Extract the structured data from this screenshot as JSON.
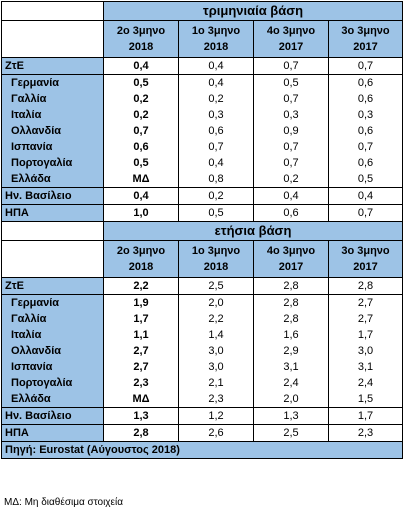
{
  "sections": [
    {
      "title": "τριμηνιαία βάση",
      "headers": [
        {
          "line1": "2ο 3μηνο",
          "line2": "2018"
        },
        {
          "line1": "1ο 3μηνο",
          "line2": "2018"
        },
        {
          "line1": "4ο 3μηνο",
          "line2": "2017"
        },
        {
          "line1": "3ο 3μηνο",
          "line2": "2017"
        }
      ],
      "rows": [
        {
          "label": "ΖτΕ",
          "values": [
            "0,4",
            "0,4",
            "0,7",
            "0,7"
          ]
        },
        {
          "label": "Γερμανία",
          "values": [
            "0,5",
            "0,4",
            "0,5",
            "0,6"
          ]
        },
        {
          "label": "Γαλλία",
          "values": [
            "0,2",
            "0,2",
            "0,7",
            "0,6"
          ]
        },
        {
          "label": "Ιταλία",
          "values": [
            "0,2",
            "0,3",
            "0,3",
            "0,3"
          ]
        },
        {
          "label": "Ολλανδία",
          "values": [
            "0,7",
            "0,6",
            "0,9",
            "0,6"
          ]
        },
        {
          "label": "Ισπανία",
          "values": [
            "0,6",
            "0,7",
            "0,7",
            "0,7"
          ]
        },
        {
          "label": "Πορτογαλία",
          "values": [
            "0,5",
            "0,4",
            "0,7",
            "0,6"
          ]
        },
        {
          "label": "Ελλάδα",
          "values": [
            "ΜΔ",
            "0,8",
            "0,2",
            "0,5"
          ]
        },
        {
          "label": "Ην. Βασίλειο",
          "values": [
            "0,4",
            "0,2",
            "0,4",
            "0,4"
          ]
        },
        {
          "label": "ΗΠΑ",
          "values": [
            "1,0",
            "0,5",
            "0,6",
            "0,7"
          ]
        }
      ]
    },
    {
      "title": "ετήσια βάση",
      "headers": [
        {
          "line1": "2ο 3μηνο",
          "line2": "2018"
        },
        {
          "line1": "1ο 3μηνο",
          "line2": "2018"
        },
        {
          "line1": "4ο 3μηνο",
          "line2": "2017"
        },
        {
          "line1": "3ο 3μηνο",
          "line2": "2017"
        }
      ],
      "rows": [
        {
          "label": "ΖτΕ",
          "values": [
            "2,2",
            "2,5",
            "2,8",
            "2,8"
          ]
        },
        {
          "label": "Γερμανία",
          "values": [
            "1,9",
            "2,0",
            "2,8",
            "2,7"
          ]
        },
        {
          "label": "Γαλλία",
          "values": [
            "1,7",
            "2,2",
            "2,8",
            "2,7"
          ]
        },
        {
          "label": "Ιταλία",
          "values": [
            "1,1",
            "1,4",
            "1,6",
            "1,7"
          ]
        },
        {
          "label": "Ολλανδία",
          "values": [
            "2,7",
            "3,0",
            "2,9",
            "3,0"
          ]
        },
        {
          "label": "Ισπανία",
          "values": [
            "2,7",
            "3,0",
            "3,1",
            "3,1"
          ]
        },
        {
          "label": "Πορτογαλία",
          "values": [
            "2,3",
            "2,1",
            "2,4",
            "2,4"
          ]
        },
        {
          "label": "Ελλάδα",
          "values": [
            "ΜΔ",
            "2,3",
            "2,0",
            "1,5"
          ]
        },
        {
          "label": "Ην. Βασίλειο",
          "values": [
            "1,3",
            "1,2",
            "1,3",
            "1,7"
          ]
        },
        {
          "label": "ΗΠΑ",
          "values": [
            "2,8",
            "2,6",
            "2,5",
            "2,3"
          ]
        }
      ]
    }
  ],
  "source": "Πηγή: Eurostat (Αύγουστος 2018)",
  "footnote": "ΜΔ: Μη διαθέσιμα στοιχεία",
  "colors": {
    "header_fill": "#9dc3e6",
    "cell_fill": "#ffffff"
  }
}
